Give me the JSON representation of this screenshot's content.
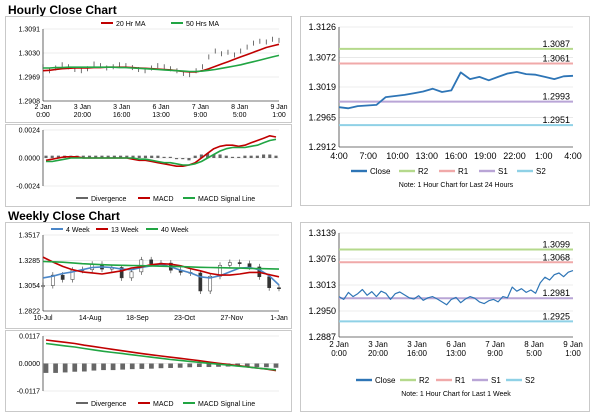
{
  "colors": {
    "ma20": "#c00000",
    "ma50": "#21a543",
    "w4": "#4a86c8",
    "w13": "#c00000",
    "w40": "#21a543",
    "divergence": "#666666",
    "macd": "#c00000",
    "signal": "#21a543",
    "close": "#2e75b6",
    "r2": "#b5d98c",
    "r1": "#f0a9a9",
    "s1": "#b9a5d6",
    "s2": "#8fd1e6",
    "grid": "#d9d9d9"
  },
  "hourly": {
    "title": "Hourly Close Chart",
    "price_chart": {
      "type": "line",
      "legend": [
        "20 Hr MA",
        "50 Hrs MA"
      ],
      "y_ticks": [
        "1.3091",
        "1.3030",
        "1.2969",
        "1.2908"
      ],
      "ylim": [
        1.2908,
        1.3091
      ],
      "x_ticks": [
        [
          "2 Jan",
          "0:00"
        ],
        [
          "3 Jan",
          "20:00"
        ],
        [
          "3 Jan",
          "16:00"
        ],
        [
          "6 Jan",
          "13:00"
        ],
        [
          "7 Jan",
          "9:00"
        ],
        [
          "8 Jan",
          "5:00"
        ],
        [
          "9 Jan",
          "1:00"
        ]
      ],
      "close": [
        1.2995,
        1.2985,
        1.2992,
        1.3,
        1.2995,
        1.2988,
        1.2985,
        1.299,
        1.3002,
        1.2998,
        1.2992,
        1.2995,
        1.3,
        1.2998,
        1.2993,
        1.2988,
        1.2985,
        1.2992,
        1.2998,
        1.2995,
        1.299,
        1.2985,
        1.2978,
        1.2975,
        1.2985,
        1.2995,
        1.302,
        1.3035,
        1.3028,
        1.3032,
        1.3025,
        1.3035,
        1.3045,
        1.3055,
        1.306,
        1.3058,
        1.3065,
        1.3062
      ],
      "ma20": [
        1.2985,
        1.2986,
        1.2988,
        1.299,
        1.2991,
        1.2992,
        1.2992,
        1.2992,
        1.2993,
        1.2993,
        1.2994,
        1.2994,
        1.2994,
        1.2994,
        1.2993,
        1.2992,
        1.2991,
        1.299,
        1.2989,
        1.2988,
        1.2987,
        1.2985,
        1.2983,
        1.2982,
        1.2982,
        1.2985,
        1.299,
        1.2996,
        1.3002,
        1.3008,
        1.3014,
        1.302,
        1.3026,
        1.3032,
        1.3038,
        1.3044,
        1.3048,
        1.3052
      ],
      "ma50": [
        1.2992,
        1.2992,
        1.2993,
        1.2993,
        1.2994,
        1.2994,
        1.2994,
        1.2994,
        1.2994,
        1.2994,
        1.2994,
        1.2994,
        1.2993,
        1.2993,
        1.2992,
        1.2991,
        1.299,
        1.2989,
        1.2988,
        1.2987,
        1.2986,
        1.2985,
        1.2984,
        1.2983,
        1.2983,
        1.2984,
        1.2986,
        1.2988,
        1.2991,
        1.2994,
        1.2997,
        1.3,
        1.3004,
        1.3008,
        1.3012,
        1.3016,
        1.302,
        1.3024
      ]
    },
    "macd_chart": {
      "type": "bar",
      "y_ticks": [
        "0.0024",
        "0.0000",
        "-0.0024"
      ],
      "ylim": [
        -0.0024,
        0.0024
      ],
      "legend": [
        "Divergence",
        "MACD",
        "MACD Signal Line"
      ],
      "divergence": [
        0.0002,
        0.0002,
        0.0002,
        0.0002,
        0.0002,
        0.0002,
        0.0002,
        0.0002,
        0.0002,
        0.0002,
        0.0002,
        0.0002,
        0.0002,
        0.0002,
        0.0002,
        0.0002,
        0.0002,
        0.0002,
        0.0002,
        0.0001,
        0.0001,
        -0.0001,
        -0.0001,
        -0.0002,
        0.0002,
        0.0003,
        0.0004,
        0.0003,
        0.0003,
        0.0002,
        0.0001,
        0.0001,
        0.0002,
        0.0002,
        0.0002,
        0.0003,
        0.0003,
        0.0002
      ],
      "macd": [
        -0.0002,
        -0.0001,
        0,
        0.0001,
        0.0001,
        0.0001,
        0,
        0,
        0,
        0,
        0,
        0,
        0,
        0,
        -0.0001,
        -0.0002,
        -0.0002,
        -0.0003,
        -0.0004,
        -0.0005,
        -0.0006,
        -0.0007,
        -0.0007,
        -0.0006,
        -0.0004,
        0,
        0.0004,
        0.0008,
        0.001,
        0.0011,
        0.0011,
        0.001,
        0.0011,
        0.0013,
        0.0015,
        0.0017,
        0.0019,
        0.0018
      ],
      "signal": [
        -0.0003,
        -0.0003,
        -0.0002,
        -0.0001,
        0,
        0,
        0,
        0,
        0,
        0,
        0,
        0,
        0,
        0,
        0,
        -0.0001,
        -0.0001,
        -0.0002,
        -0.0003,
        -0.0004,
        -0.0004,
        -0.0005,
        -0.0006,
        -0.0006,
        -0.0005,
        -0.0003,
        0,
        0.0003,
        0.0006,
        0.0008,
        0.0009,
        0.0009,
        0.0009,
        0.001,
        0.0011,
        0.0013,
        0.0015,
        0.0016
      ]
    },
    "levels_chart": {
      "type": "line",
      "y_ticks": [
        "1.3126",
        "1.3072",
        "1.3019",
        "1.2965",
        "1.2912"
      ],
      "ylim": [
        1.2912,
        1.3126
      ],
      "x_ticks": [
        "4:00",
        "7:00",
        "10:00",
        "13:00",
        "16:00",
        "19:00",
        "22:00",
        "1:00",
        "4:00"
      ],
      "levels": [
        {
          "name": "R2",
          "value": 1.3087,
          "label": "1.3087"
        },
        {
          "name": "R1",
          "value": 1.3061,
          "label": "1.3061"
        },
        {
          "name": "S1",
          "value": 1.2993,
          "label": "1.2993"
        },
        {
          "name": "S2",
          "value": 1.2951,
          "label": "1.2951"
        }
      ],
      "close": [
        1.2983,
        1.2981,
        1.2985,
        1.2986,
        1.2987,
        1.3001,
        1.3003,
        1.3005,
        1.3008,
        1.3011,
        1.3016,
        1.301,
        1.3013,
        1.3045,
        1.3033,
        1.3037,
        1.3031,
        1.3037,
        1.3043,
        1.3046,
        1.3042,
        1.3041,
        1.3037,
        1.3033,
        1.3038,
        1.3039
      ],
      "legend": [
        "Close",
        "R2",
        "R1",
        "S1",
        "S2"
      ],
      "note": "Note: 1 Hour Chart for Last 24 Hours"
    }
  },
  "weekly": {
    "title": "Weekly Close Chart",
    "price_chart": {
      "type": "line",
      "legend": [
        "4 Week",
        "13 Week",
        "40 Week"
      ],
      "y_ticks": [
        "1.3517",
        "1.3285",
        "1.3054",
        "1.2822"
      ],
      "ylim": [
        1.2822,
        1.3517
      ],
      "x_ticks": [
        "10-Jul",
        "14-Aug",
        "18-Sep",
        "23-Oct",
        "27-Nov",
        "1-Jan"
      ],
      "close": [
        1.3055,
        1.315,
        1.311,
        1.3195,
        1.32,
        1.325,
        1.3205,
        1.322,
        1.3125,
        1.318,
        1.329,
        1.3255,
        1.326,
        1.3195,
        1.3175,
        1.317,
        1.3005,
        1.314,
        1.324,
        1.3265,
        1.3255,
        1.3225,
        1.3135,
        1.3035,
        1.303
      ],
      "w4": [
        1.3125,
        1.314,
        1.3165,
        1.318,
        1.32,
        1.322,
        1.3225,
        1.322,
        1.3205,
        1.32,
        1.322,
        1.3235,
        1.325,
        1.3225,
        1.3195,
        1.317,
        1.3135,
        1.3125,
        1.3145,
        1.318,
        1.3215,
        1.322,
        1.32,
        1.3145,
        1.306
      ],
      "w13": [
        1.3315,
        1.327,
        1.323,
        1.32,
        1.318,
        1.317,
        1.316,
        1.3175,
        1.319,
        1.3215,
        1.3225,
        1.3245,
        1.3255,
        1.325,
        1.3235,
        1.321,
        1.319,
        1.3165,
        1.315,
        1.315,
        1.316,
        1.3175,
        1.3175,
        1.3155,
        1.3135
      ],
      "w40": [
        1.3275,
        1.3272,
        1.3268,
        1.3262,
        1.3255,
        1.325,
        1.3245,
        1.3242,
        1.324,
        1.3238,
        1.3236,
        1.3234,
        1.3232,
        1.323,
        1.3228,
        1.3225,
        1.3222,
        1.322,
        1.3218,
        1.3216,
        1.3214,
        1.3212,
        1.321,
        1.3208,
        1.3205
      ]
    },
    "macd_chart": {
      "type": "bar",
      "y_ticks": [
        "0.0117",
        "0.0000",
        "-0.0117"
      ],
      "ylim": [
        -0.0117,
        0.0117
      ],
      "legend": [
        "Divergence",
        "MACD",
        "MACD Signal Line"
      ],
      "divergence": [
        -0.004,
        -0.004,
        -0.0038,
        -0.0035,
        -0.0034,
        -0.003,
        -0.0028,
        -0.0028,
        -0.0026,
        -0.0024,
        -0.0023,
        -0.0022,
        -0.002,
        -0.0019,
        -0.0018,
        -0.0016,
        -0.0015,
        -0.0015,
        -0.0014,
        -0.0013,
        -0.0013,
        -0.0014,
        -0.0015,
        -0.0016,
        -0.0018
      ],
      "macd": [
        0.01,
        0.0095,
        0.009,
        0.0085,
        0.0078,
        0.0072,
        0.0066,
        0.006,
        0.0054,
        0.0048,
        0.0042,
        0.0037,
        0.0032,
        0.0027,
        0.0022,
        0.0017,
        0.0012,
        0.0006,
        0.0001,
        -0.0004,
        -0.0009,
        -0.0014,
        -0.0019,
        -0.0024,
        -0.003
      ],
      "signal": [
        0.0085,
        0.008,
        0.0075,
        0.007,
        0.0064,
        0.0058,
        0.0052,
        0.0047,
        0.0042,
        0.0037,
        0.0032,
        0.0027,
        0.0022,
        0.0017,
        0.0013,
        0.0009,
        0.0005,
        0.0001,
        -0.0003,
        -0.0007,
        -0.0011,
        -0.0015,
        -0.0019,
        -0.0023,
        -0.0027
      ]
    },
    "levels_chart": {
      "type": "line",
      "y_ticks": [
        "1.3139",
        "1.3076",
        "1.3013",
        "1.2950",
        "1.2887"
      ],
      "ylim": [
        1.2887,
        1.3139
      ],
      "x_ticks": [
        [
          "2 Jan",
          "0:00"
        ],
        [
          "3 Jan",
          "20:00"
        ],
        [
          "3 Jan",
          "16:00"
        ],
        [
          "6 Jan",
          "13:00"
        ],
        [
          "7 Jan",
          "9:00"
        ],
        [
          "8 Jan",
          "5:00"
        ],
        [
          "9 Jan",
          "1:00"
        ]
      ],
      "levels": [
        {
          "name": "R2",
          "value": 1.3099,
          "label": "1.3099"
        },
        {
          "name": "R1",
          "value": 1.3068,
          "label": "1.3068"
        },
        {
          "name": "S1",
          "value": 1.2981,
          "label": "1.2981"
        },
        {
          "name": "S2",
          "value": 1.2925,
          "label": "1.2925"
        }
      ],
      "close": [
        1.2985,
        1.2978,
        1.2995,
        1.2985,
        1.2992,
        1.3002,
        1.2988,
        1.2997,
        1.2985,
        1.2998,
        1.2993,
        1.2978,
        1.2992,
        1.2996,
        1.2989,
        1.2982,
        1.2979,
        1.2987,
        1.2976,
        1.2982,
        1.2985,
        1.2979,
        1.2972,
        1.2965,
        1.2978,
        1.2983,
        1.297,
        1.2979,
        1.2985,
        1.2981,
        1.2972,
        1.2968,
        1.2975,
        1.2978,
        1.2972,
        1.2985,
        1.2982,
        1.3008,
        1.2998,
        1.3004,
        1.2995,
        1.3001,
        1.2993,
        1.3018,
        1.3032,
        1.3025,
        1.3038,
        1.3042,
        1.3033,
        1.3044,
        1.3048
      ],
      "legend": [
        "Close",
        "R2",
        "R1",
        "S1",
        "S2"
      ],
      "note": "Note: 1 Hour Chart for Last 1 Week"
    }
  }
}
